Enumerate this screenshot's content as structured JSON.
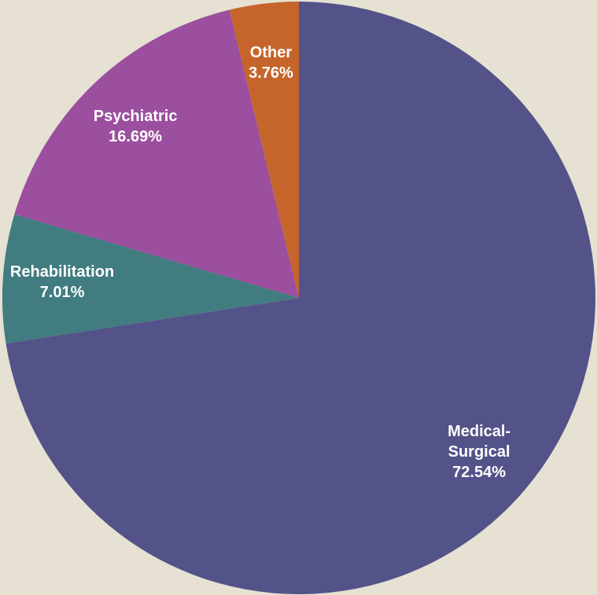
{
  "chart_data": {
    "type": "pie",
    "categories": [
      "Medical-Surgical",
      "Rehabilitation",
      "Psychiatric",
      "Other"
    ],
    "values": [
      72.54,
      7.01,
      16.69,
      3.76
    ],
    "value_labels": [
      "72.54%",
      "7.01%",
      "16.69%",
      "3.76%"
    ],
    "colors": [
      "#535389",
      "#417c80",
      "#9b4f9e",
      "#c5652c"
    ]
  }
}
